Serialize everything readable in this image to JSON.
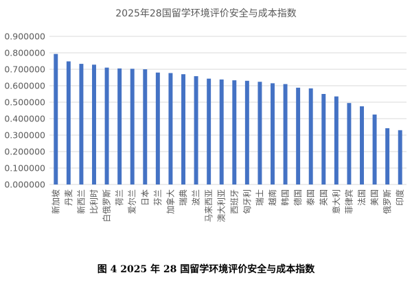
{
  "caption": "图 4 2025 年 28 国留学环境评价安全与成本指数",
  "colors": {
    "bar": "#4472C4",
    "grid": "#D9D9D9",
    "text": "#595959"
  },
  "chart_data": {
    "type": "bar",
    "title": "2025年28国留学环境评价安全与成本指数",
    "categories": [
      "新加坡",
      "丹麦",
      "新西兰",
      "比利时",
      "白俄罗斯",
      "荷兰",
      "爱尔兰",
      "日本",
      "芬兰",
      "加拿大",
      "瑞典",
      "波兰",
      "马来西亚",
      "澳大利亚",
      "西班牙",
      "匈牙利",
      "瑞士",
      "越南",
      "韩国",
      "德国",
      "泰国",
      "英国",
      "意大利",
      "菲律宾",
      "法国",
      "美国",
      "俄罗斯",
      "印度"
    ],
    "values": [
      0.793,
      0.748,
      0.733,
      0.728,
      0.71,
      0.705,
      0.703,
      0.7,
      0.68,
      0.677,
      0.67,
      0.658,
      0.643,
      0.638,
      0.633,
      0.63,
      0.624,
      0.615,
      0.61,
      0.588,
      0.584,
      0.55,
      0.535,
      0.495,
      0.475,
      0.425,
      0.342,
      0.33
    ],
    "yticks": [
      "0.000000",
      "0.100000",
      "0.200000",
      "0.300000",
      "0.400000",
      "0.500000",
      "0.600000",
      "0.700000",
      "0.800000",
      "0.900000"
    ],
    "ylim": [
      0,
      0.9
    ],
    "grid": true,
    "legend": "none"
  }
}
